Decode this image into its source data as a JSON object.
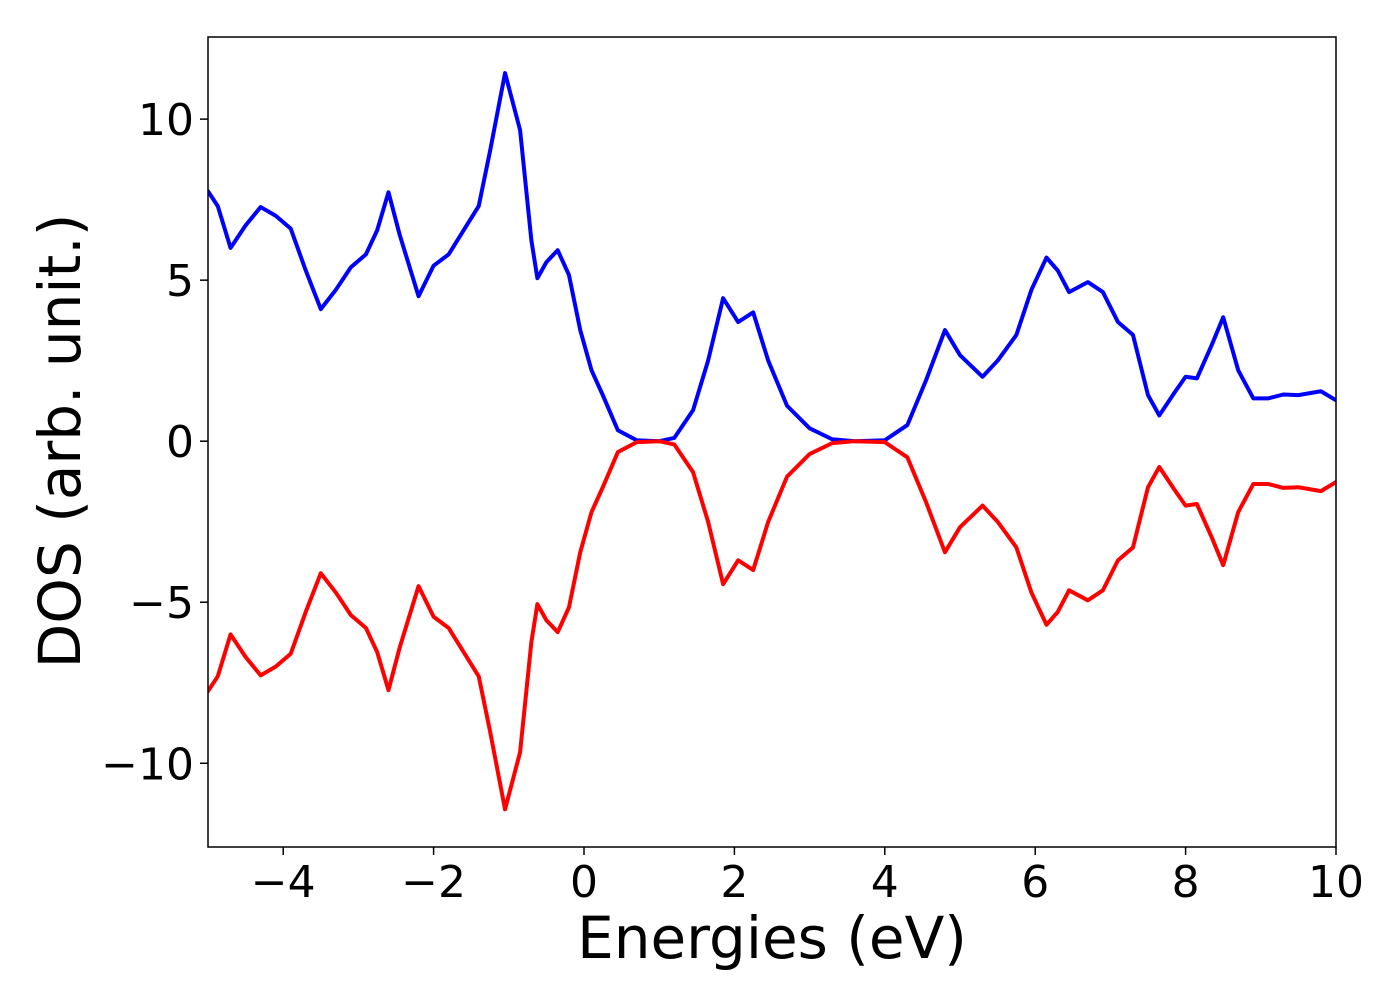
{
  "chart_data": {
    "type": "line",
    "x_label": "Energies (eV)",
    "y_label": "DOS (arb. unit.)",
    "xlim": [
      -5,
      10
    ],
    "ylim": [
      -12.6,
      12.55
    ],
    "xticks": [
      {
        "value": -4,
        "label": "−4"
      },
      {
        "value": -2,
        "label": "−2"
      },
      0,
      2,
      4,
      6,
      8,
      10
    ],
    "yticks": [
      {
        "value": -10,
        "label": "−10"
      },
      {
        "value": -5,
        "label": "−5"
      },
      0,
      5,
      10
    ],
    "grid": false,
    "x": [
      -5,
      -4.87,
      -4.7,
      -4.5,
      -4.3,
      -4.1,
      -3.9,
      -3.7,
      -3.5,
      -3.3,
      -3.1,
      -2.9,
      -2.75,
      -2.6,
      -2.45,
      -2.2,
      -2.0,
      -1.8,
      -1.6,
      -1.4,
      -1.25,
      -1.05,
      -0.85,
      -0.7,
      -0.62,
      -0.5,
      -0.35,
      -0.2,
      -0.05,
      0.1,
      0.25,
      0.45,
      0.7,
      1.0,
      1.2,
      1.45,
      1.65,
      1.85,
      2.05,
      2.25,
      2.45,
      2.7,
      3.0,
      3.3,
      3.6,
      4.0,
      4.3,
      4.55,
      4.8,
      5.0,
      5.3,
      5.5,
      5.75,
      5.95,
      6.15,
      6.3,
      6.45,
      6.7,
      6.9,
      7.1,
      7.3,
      7.5,
      7.65,
      7.85,
      8.0,
      8.15,
      8.35,
      8.5,
      8.7,
      8.9,
      9.1,
      9.3,
      9.5,
      9.8,
      10.0
    ],
    "series": [
      {
        "color": "#0000ff",
        "values": [
          7.76,
          7.3,
          6.0,
          6.7,
          7.27,
          7.0,
          6.6,
          5.3,
          4.1,
          4.7,
          5.4,
          5.8,
          6.55,
          7.73,
          6.4,
          4.5,
          5.45,
          5.8,
          6.55,
          7.3,
          9.0,
          11.43,
          9.66,
          6.24,
          5.06,
          5.56,
          5.93,
          5.16,
          3.45,
          2.2,
          1.43,
          0.34,
          0.03,
          0,
          0.1,
          0.96,
          2.5,
          4.44,
          3.7,
          4.0,
          2.5,
          1.1,
          0.4,
          0.06,
          0,
          0.03,
          0.5,
          1.9,
          3.45,
          2.67,
          2.0,
          2.5,
          3.3,
          4.7,
          5.7,
          5.3,
          4.63,
          4.94,
          4.63,
          3.7,
          3.3,
          1.43,
          0.8,
          1.5,
          2.0,
          1.95,
          3.0,
          3.85,
          2.2,
          1.33,
          1.33,
          1.45,
          1.43,
          1.55,
          1.27
        ]
      },
      {
        "color": "#ff0000",
        "values": [
          -7.76,
          -7.3,
          -6.0,
          -6.7,
          -7.27,
          -7.0,
          -6.6,
          -5.3,
          -4.1,
          -4.7,
          -5.4,
          -5.8,
          -6.55,
          -7.73,
          -6.4,
          -4.5,
          -5.45,
          -5.8,
          -6.55,
          -7.3,
          -9.0,
          -11.43,
          -9.66,
          -6.24,
          -5.06,
          -5.56,
          -5.93,
          -5.16,
          -3.45,
          -2.2,
          -1.43,
          -0.34,
          -0.03,
          0,
          -0.1,
          -0.96,
          -2.5,
          -4.44,
          -3.7,
          -4.0,
          -2.5,
          -1.1,
          -0.4,
          -0.06,
          0,
          -0.03,
          -0.5,
          -1.9,
          -3.45,
          -2.67,
          -2.0,
          -2.5,
          -3.3,
          -4.7,
          -5.7,
          -5.3,
          -4.63,
          -4.94,
          -4.63,
          -3.7,
          -3.3,
          -1.43,
          -0.8,
          -1.5,
          -2.0,
          -1.95,
          -3.0,
          -3.85,
          -2.2,
          -1.33,
          -1.33,
          -1.45,
          -1.43,
          -1.55,
          -1.27
        ]
      }
    ]
  }
}
